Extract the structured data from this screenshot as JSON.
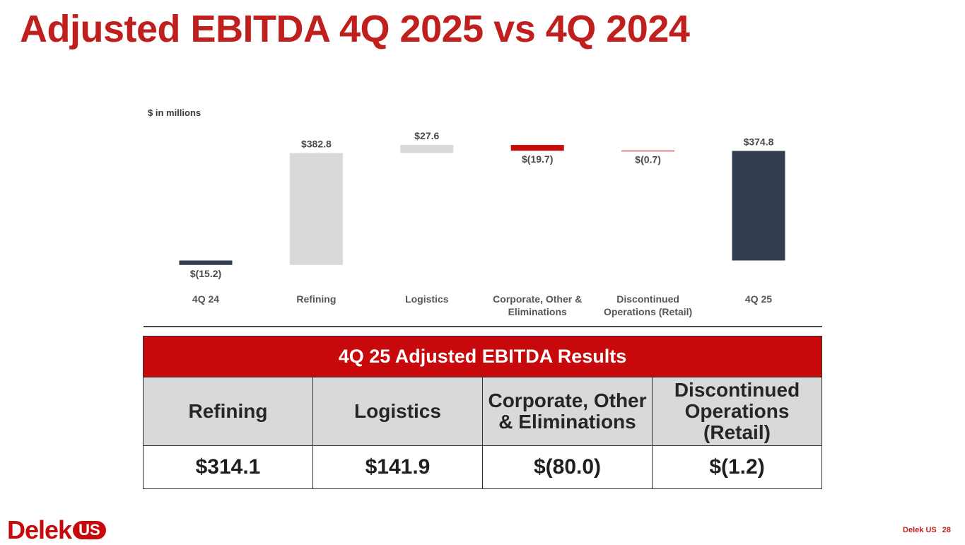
{
  "slide": {
    "title": "Adjusted EBITDA 4Q 2025 vs 4Q 2024",
    "unit_label": "$ in millions"
  },
  "chart_data": {
    "type": "waterfall",
    "ylabel": "$ in millions",
    "categories": [
      "4Q 24",
      "Refining",
      "Logistics",
      "Corporate, Other & Eliminations",
      "Discontinued Operations (Retail)",
      "4Q 25"
    ],
    "values": [
      -15.2,
      382.8,
      27.6,
      -19.7,
      -0.7,
      374.8
    ],
    "kinds": [
      "total",
      "delta",
      "delta",
      "delta",
      "delta",
      "total"
    ],
    "labels": [
      "$(15.2)",
      "$382.8",
      "$27.6",
      "$(19.7)",
      "$(0.7)",
      "$374.8"
    ],
    "colors": {
      "total": "#333e50",
      "increase": "#d9d9d9",
      "decrease": "#c8090b"
    }
  },
  "table": {
    "title": "4Q 25 Adjusted EBITDA Results",
    "headers": [
      "Refining",
      "Logistics",
      "Corporate, Other & Eliminations",
      "Discontinued Operations (Retail)"
    ],
    "values": [
      "$314.1",
      "$141.9",
      "$(80.0)",
      "$(1.2)"
    ]
  },
  "footer": {
    "logo_text": "Delek",
    "logo_badge": "US",
    "company": "Delek US",
    "page": "28"
  },
  "colors": {
    "brand_red": "#c8090b",
    "title_red": "#c0201d",
    "dark_bar": "#333e50"
  }
}
